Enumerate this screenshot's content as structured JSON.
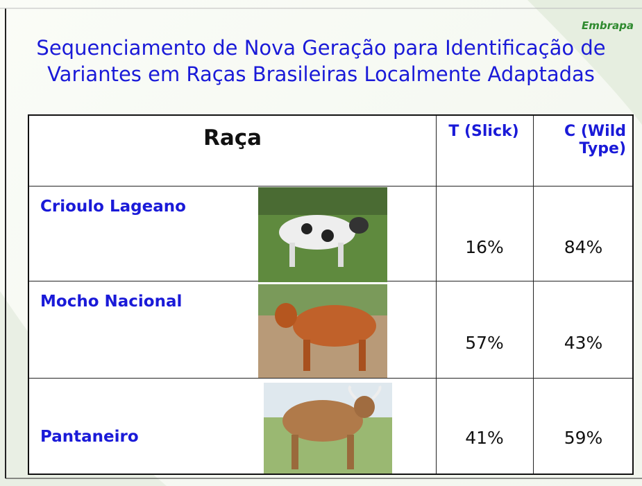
{
  "header": {
    "logo": "Embrapa",
    "title_lines": [
      "Sequenciamento de Nova Geração para Identificação de",
      "Variantes em Raças Brasileiras Localmente Adaptadas"
    ]
  },
  "table": {
    "columns": [
      "Raça",
      "T (Slick)",
      "C (Wild Type)"
    ],
    "rows": [
      [
        "Crioulo Lageano",
        "16%",
        "84%"
      ],
      [
        "Mocho Nacional",
        "57%",
        "43%"
      ],
      [
        "Pantaneiro",
        "41%",
        "59%"
      ]
    ]
  }
}
